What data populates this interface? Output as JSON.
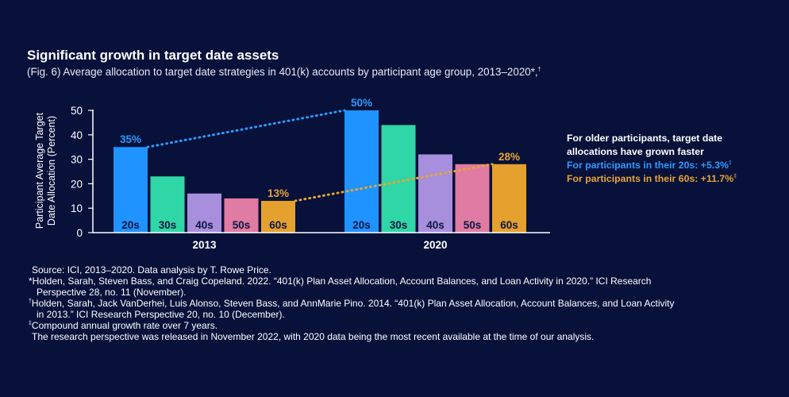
{
  "title": "Significant growth in target date assets",
  "subtitle": "(Fig. 6) Average allocation to target date strategies in 401(k) accounts by participant age group, 2013–2020*,",
  "subtitle_mark": "†",
  "chart_data": {
    "type": "bar",
    "ylabel_line1": "Participant Average Target",
    "ylabel_line2": "Date Allocation (Percent)",
    "ylim": [
      0,
      50
    ],
    "yticks": [
      "0",
      "10",
      "20",
      "30",
      "40",
      "50"
    ],
    "categories": [
      "20s",
      "30s",
      "40s",
      "50s",
      "60s"
    ],
    "groups": [
      {
        "name": "2013",
        "values": [
          35,
          23,
          16,
          14,
          13
        ]
      },
      {
        "name": "2020",
        "values": [
          50,
          44,
          32,
          28,
          28
        ]
      }
    ],
    "data_labels": [
      {
        "group": 0,
        "index": 0,
        "text": "35%",
        "color": "#2b9bff"
      },
      {
        "group": 0,
        "index": 4,
        "text": "13%",
        "color": "#e8a334"
      },
      {
        "group": 1,
        "index": 0,
        "text": "50%",
        "color": "#2b9bff"
      },
      {
        "group": 1,
        "index": 4,
        "text": "28%",
        "color": "#e8a334"
      }
    ],
    "trend_lines": [
      {
        "name": "20s growth",
        "from": [
          0,
          0
        ],
        "to": [
          1,
          0
        ],
        "color": "#2b9bff"
      },
      {
        "name": "60s growth",
        "from": [
          0,
          4
        ],
        "to": [
          1,
          4
        ],
        "color": "#e8a334"
      }
    ],
    "colors": [
      "#1f93ff",
      "#2fd6a6",
      "#a78fdd",
      "#e07ba3",
      "#e5a12d"
    ],
    "grid": false
  },
  "annotation": {
    "line1": "For older participants, target date",
    "line2": "allocations have grown faster",
    "line3": "For participants in their 20s: +5.3%",
    "line4": "For participants in their 60s: +11.7%",
    "mark": "‡"
  },
  "sources": {
    "source": "Source: ICI, 2013–2020. Data analysis by T. Rowe Price.",
    "note1_mark": "*",
    "note1_a": "Holden, Sarah, Steven Bass, and Craig Copeland. 2022. “401(k) Plan Asset Allocation, Account Balances, and Loan Activity in 2020.” ICI Research",
    "note1_b": "Perspective 28, no. 11 (November).",
    "note2_mark": "†",
    "note2_a": "Holden, Sarah, Jack VanDerhei, Luis Alonso, Steven Bass, and AnnMarie Pino. 2014. “401(k) Plan Asset Allocation, Account Balances, and Loan Activity",
    "note2_b": "in 2013.” ICI Research Perspective 20, no. 10 (December).",
    "note3_mark": "‡",
    "note3": "Compound annual growth rate over 7 years.",
    "note4": "The research perspective was released in November 2022, with 2020 data being the most recent available at the time of our analysis."
  }
}
